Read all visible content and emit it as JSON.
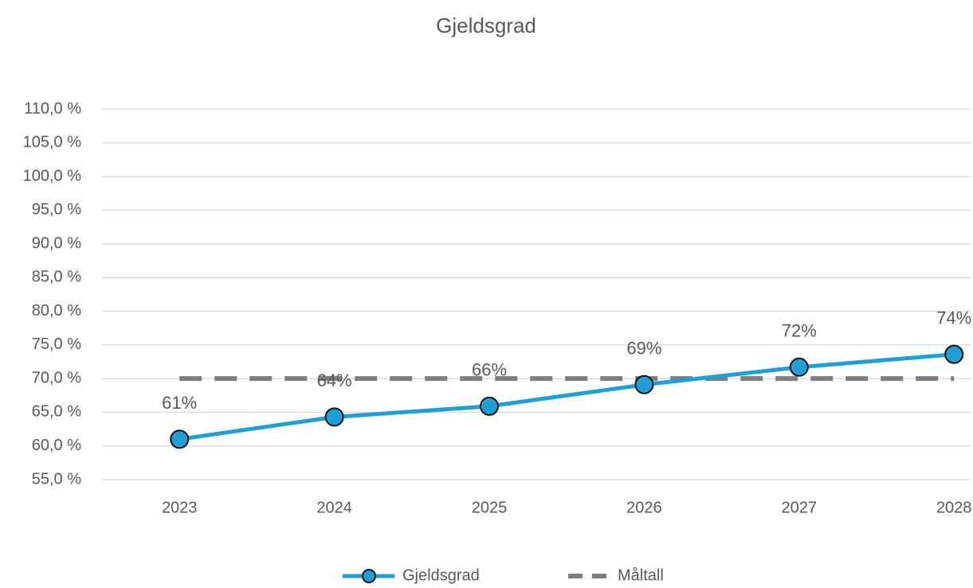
{
  "chart_data": {
    "type": "line",
    "title": "Gjeldsgrad",
    "categories": [
      "2023",
      "2024",
      "2025",
      "2026",
      "2027",
      "2028"
    ],
    "series": [
      {
        "name": "Gjeldsgrad",
        "color": "#1f9fd6",
        "values": [
          61.0,
          64.3,
          65.9,
          69.1,
          71.7,
          73.6
        ],
        "value_labels": [
          "61%",
          "64%",
          "66%",
          "69%",
          "72%",
          "74%"
        ],
        "markers": true
      },
      {
        "name": "Måltall",
        "color": "#7f7f7f",
        "values": [
          70,
          70,
          70,
          70,
          70,
          70
        ],
        "dashed": true
      }
    ],
    "ylim": [
      55,
      110
    ],
    "yticks": [
      {
        "value": 55,
        "label": "55,0 %"
      },
      {
        "value": 60,
        "label": "60,0 %"
      },
      {
        "value": 65,
        "label": "65,0 %"
      },
      {
        "value": 70,
        "label": "70,0 %"
      },
      {
        "value": 75,
        "label": "75,0 %"
      },
      {
        "value": 80,
        "label": "80,0 %"
      },
      {
        "value": 85,
        "label": "85,0 %"
      },
      {
        "value": 90,
        "label": "90,0 %"
      },
      {
        "value": 95,
        "label": "95,0 %"
      },
      {
        "value": 100,
        "label": "100,0 %"
      },
      {
        "value": 105,
        "label": "105,0 %"
      },
      {
        "value": 110,
        "label": "110,0 %"
      }
    ],
    "grid": true,
    "legend": "bottom"
  }
}
